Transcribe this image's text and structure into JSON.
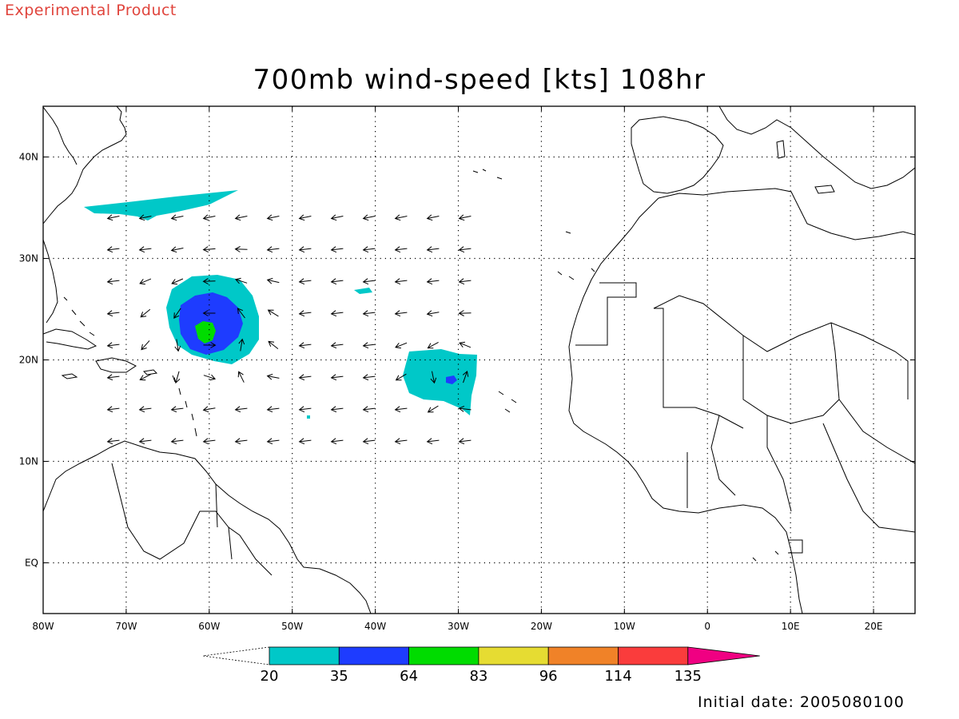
{
  "header": {
    "product_label": "Experimental Product",
    "title": "700mb wind-speed [kts] 108hr",
    "initial_date": "Initial date: 2005080100"
  },
  "map": {
    "lon_range": [
      -80,
      25
    ],
    "lat_range": [
      -5,
      45
    ],
    "lon_ticks": [
      {
        "lon": -80,
        "label": "80W"
      },
      {
        "lon": -70,
        "label": "70W"
      },
      {
        "lon": -60,
        "label": "60W"
      },
      {
        "lon": -50,
        "label": "50W"
      },
      {
        "lon": -40,
        "label": "40W"
      },
      {
        "lon": -30,
        "label": "30W"
      },
      {
        "lon": -20,
        "label": "20W"
      },
      {
        "lon": -10,
        "label": "10W"
      },
      {
        "lon": 0,
        "label": "0"
      },
      {
        "lon": 10,
        "label": "10E"
      },
      {
        "lon": 20,
        "label": "20E"
      }
    ],
    "lat_ticks": [
      {
        "lat": 40,
        "label": "40N"
      },
      {
        "lat": 30,
        "label": "30N"
      },
      {
        "lat": 20,
        "label": "20N"
      },
      {
        "lat": 10,
        "label": "10N"
      },
      {
        "lat": 0,
        "label": "EQ"
      }
    ],
    "grid": "dotted"
  },
  "colorbar": {
    "levels": [
      "20",
      "35",
      "64",
      "83",
      "96",
      "114",
      "135"
    ],
    "colors": [
      "#00c8c8",
      "#1e3cff",
      "#00dc00",
      "#e6dc32",
      "#f08228",
      "#fa3c3c",
      "#f00082"
    ]
  },
  "features": {
    "land_outline_color": "#000000",
    "hurricane_center": {
      "lon": -60,
      "lat": 23.5,
      "max_level": "64"
    },
    "wind_arrows": "cyclonic circulation around 60W 23N; easterly trades elsewhere"
  }
}
